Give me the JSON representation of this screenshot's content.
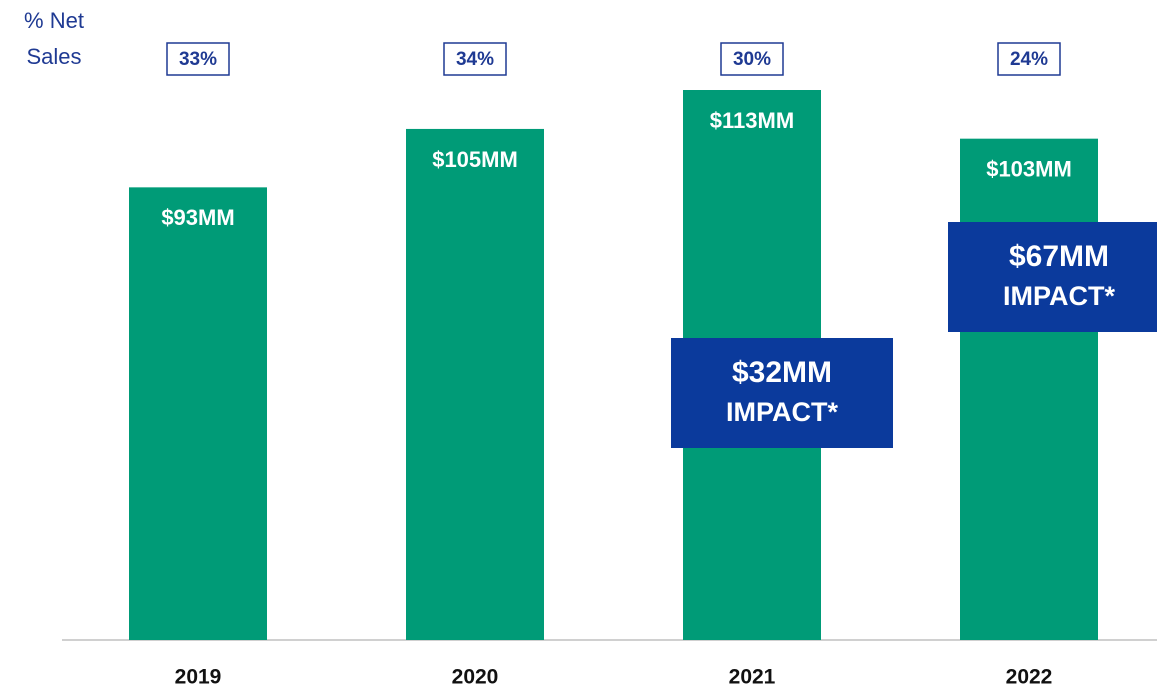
{
  "chart_data": {
    "type": "bar",
    "categories": [
      "2019",
      "2020",
      "2021",
      "2022"
    ],
    "values": [
      93,
      105,
      113,
      103
    ],
    "value_labels": [
      "$93MM",
      "$105MM",
      "$113MM",
      "$103MM"
    ],
    "color": "#009b77",
    "row_label": [
      "% Net",
      "Sales"
    ],
    "pct_net_sales": {
      "values": [
        33,
        34,
        30,
        24
      ],
      "value_labels": [
        "33%",
        "34%",
        "30%",
        "24%"
      ]
    },
    "annotations": [
      {
        "category": "2021",
        "label": "$32MM",
        "text": "IMPACT*"
      },
      {
        "category": "2022",
        "label": "$67MM",
        "text": "IMPACT*"
      }
    ]
  }
}
